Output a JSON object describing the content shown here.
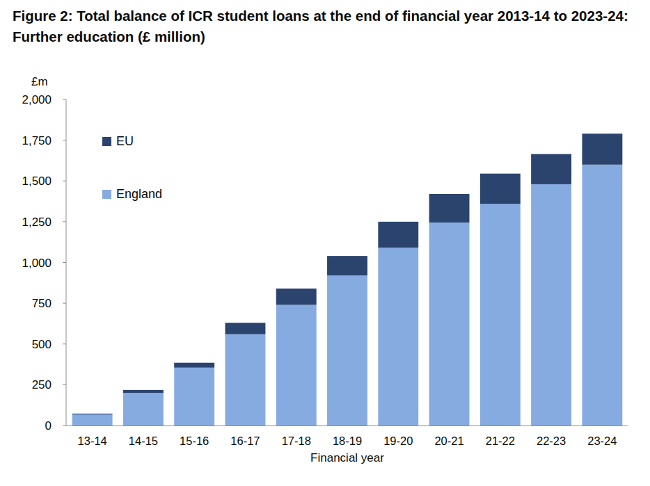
{
  "chart_data": {
    "type": "bar",
    "stacked": true,
    "grid": false,
    "legend": "top-left",
    "title": "Figure 2: Total balance of ICR student loans at the end of financial year 2013-14 to 2023-24: Further education (£ million)",
    "y_label": "£m",
    "x_label": "Financial year",
    "categories": [
      "13-14",
      "14-15",
      "15-16",
      "16-17",
      "17-18",
      "18-19",
      "19-20",
      "20-21",
      "21-22",
      "22-23",
      "23-24"
    ],
    "series": [
      {
        "name": "England",
        "color": "#86abe1",
        "values": [
          68,
          200,
          355,
          560,
          740,
          920,
          1090,
          1245,
          1360,
          1480,
          1600
        ]
      },
      {
        "name": "EU",
        "color": "#2b446e",
        "values": [
          5,
          18,
          30,
          70,
          100,
          120,
          160,
          175,
          185,
          185,
          190
        ]
      }
    ],
    "ylim": [
      0,
      2000
    ],
    "yticks": [
      0,
      250,
      500,
      750,
      {
        "value": 1000,
        "label": "1,000"
      },
      {
        "value": 1250,
        "label": "1,250"
      },
      {
        "value": 1500,
        "label": "1,500"
      },
      {
        "value": 1750,
        "label": "1,750"
      },
      {
        "value": 2000,
        "label": "2,000"
      }
    ]
  }
}
